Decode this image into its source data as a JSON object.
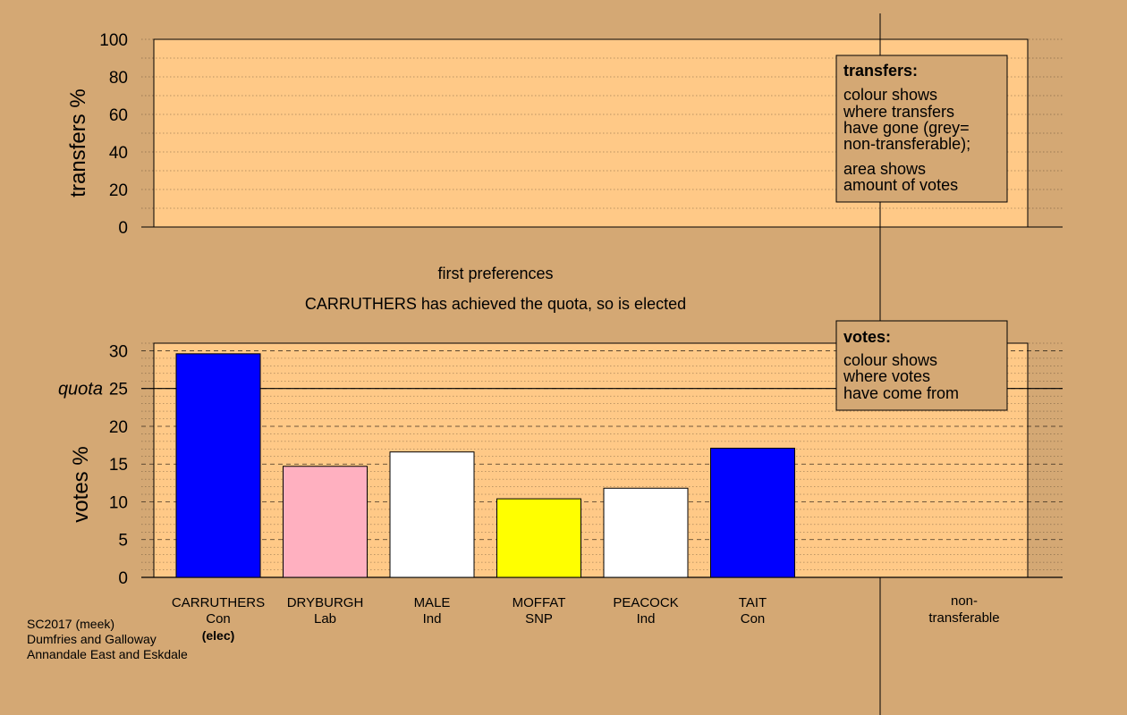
{
  "chart_data": {
    "type": "bar",
    "heading": "first preferences",
    "status": "CARRUTHERS has achieved the quota, so is elected",
    "transfers_panel": {
      "ylabel": "transfers %",
      "ylim": [
        0,
        100
      ],
      "yticks": [
        "0",
        "20",
        "40",
        "60",
        "80",
        "100"
      ]
    },
    "votes_panel": {
      "ylabel": "votes %",
      "ylim": [
        0,
        31
      ],
      "yticks": [
        "0",
        "5",
        "10",
        "15",
        "20",
        "25",
        "30"
      ],
      "quota_label": "quota",
      "quota_value": 25
    },
    "categories": [
      {
        "name": "CARRUTHERS",
        "party": "Con",
        "note": "(elec)",
        "value": 29.6,
        "color": "#0000ff"
      },
      {
        "name": "DRYBURGH",
        "party": "Lab",
        "note": "",
        "value": 14.7,
        "color": "#ffb0c0"
      },
      {
        "name": "MALE",
        "party": "Ind",
        "note": "",
        "value": 16.6,
        "color": "#ffffff"
      },
      {
        "name": "MOFFAT",
        "party": "SNP",
        "note": "",
        "value": 10.4,
        "color": "#ffff00"
      },
      {
        "name": "PEACOCK",
        "party": "Ind",
        "note": "",
        "value": 11.8,
        "color": "#ffffff"
      },
      {
        "name": "TAIT",
        "party": "Con",
        "note": "",
        "value": 17.1,
        "color": "#0000ff"
      }
    ],
    "nontransferable": {
      "line1": "non-",
      "line2": "transferable"
    },
    "legend_transfers": {
      "title": "transfers:",
      "lines": [
        "colour shows",
        "where transfers",
        "have gone (grey=",
        "non-transferable);",
        "area shows",
        "amount of votes"
      ]
    },
    "legend_votes": {
      "title": "votes:",
      "lines": [
        "colour shows",
        "where votes",
        "have come from"
      ]
    },
    "footer": [
      "SC2017 (meek)",
      "Dumfries and Galloway",
      "Annandale East and Eskdale"
    ],
    "colors": {
      "background": "#d4a874",
      "panel": "#ffc987",
      "legend_box": "#d4a874"
    }
  }
}
